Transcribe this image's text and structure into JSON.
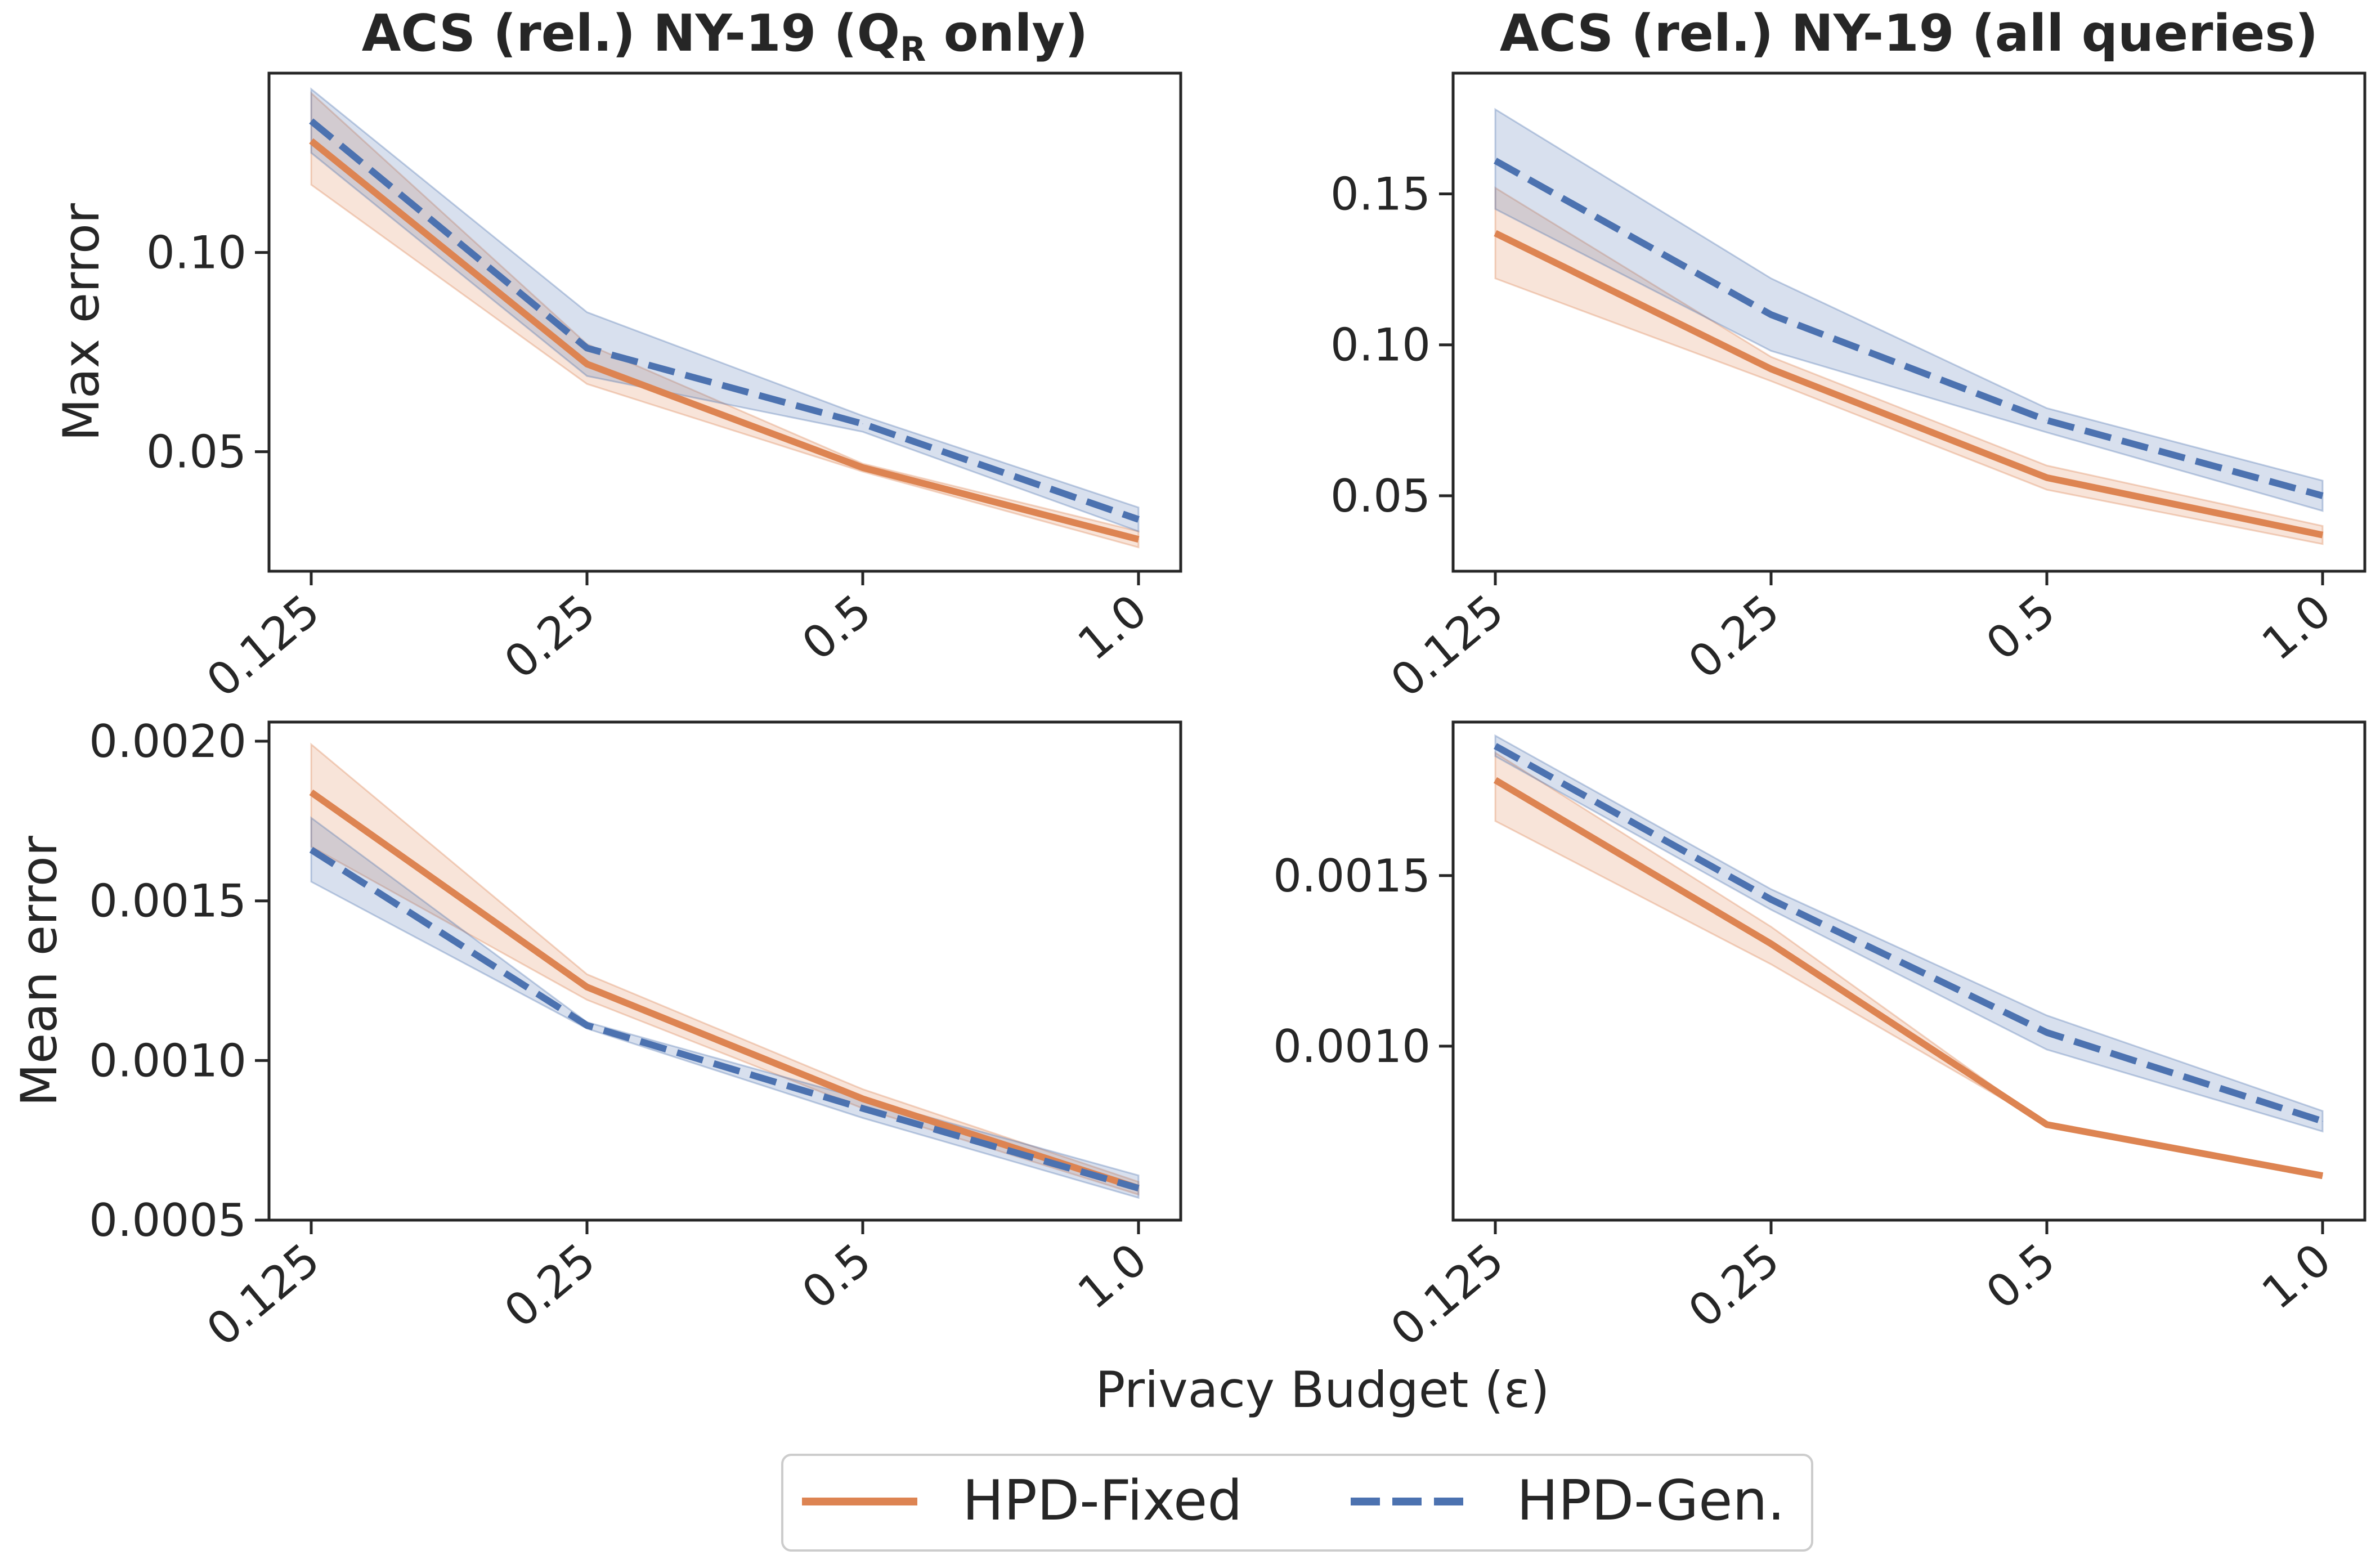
{
  "figure": {
    "xlabel": "Privacy Budget (ε)",
    "legend": {
      "placement": "bottom-center",
      "entries": [
        {
          "label": "HPD-Fixed",
          "color": "#dd8452",
          "style": "solid"
        },
        {
          "label": "HPD-Gen.",
          "color": "#4c72b0",
          "style": "dashed"
        }
      ]
    }
  },
  "chart_data": [
    {
      "type": "line",
      "title": "ACS (rel.) NY-19 (Q",
      "title_sub": "R",
      "title_end": " only)",
      "xlabel": "",
      "ylabel": "Max error",
      "categories": [
        "0.125",
        "0.25",
        "0.5",
        "1.0"
      ],
      "ylim": [
        0.02,
        0.145
      ],
      "yticks": [
        0.05,
        0.1
      ],
      "ytick_labels": [
        "0.05",
        "0.10"
      ],
      "grid": false,
      "series": [
        {
          "name": "HPD-Fixed",
          "color": "#dd8452",
          "dash": "solid",
          "values": [
            0.128,
            0.072,
            0.046,
            0.028
          ],
          "lower": [
            0.117,
            0.067,
            0.045,
            0.026
          ],
          "upper": [
            0.14,
            0.077,
            0.047,
            0.03
          ]
        },
        {
          "name": "HPD-Gen.",
          "color": "#4c72b0",
          "dash": "dashed",
          "values": [
            0.133,
            0.076,
            0.057,
            0.033
          ],
          "lower": [
            0.125,
            0.069,
            0.055,
            0.03
          ],
          "upper": [
            0.141,
            0.085,
            0.059,
            0.036
          ]
        }
      ]
    },
    {
      "type": "line",
      "title": "ACS (rel.) NY-19 (all queries)",
      "title_sub": "",
      "title_end": "",
      "xlabel": "",
      "ylabel": "",
      "categories": [
        "0.125",
        "0.25",
        "0.5",
        "1.0"
      ],
      "ylim": [
        0.025,
        0.19
      ],
      "yticks": [
        0.05,
        0.1,
        0.15
      ],
      "ytick_labels": [
        "0.05",
        "0.10",
        "0.15"
      ],
      "grid": false,
      "series": [
        {
          "name": "HPD-Fixed",
          "color": "#dd8452",
          "dash": "solid",
          "values": [
            0.137,
            0.092,
            0.056,
            0.037
          ],
          "lower": [
            0.122,
            0.088,
            0.052,
            0.034
          ],
          "upper": [
            0.152,
            0.096,
            0.06,
            0.04
          ]
        },
        {
          "name": "HPD-Gen.",
          "color": "#4c72b0",
          "dash": "dashed",
          "values": [
            0.161,
            0.11,
            0.075,
            0.05
          ],
          "lower": [
            0.145,
            0.098,
            0.071,
            0.045
          ],
          "upper": [
            0.178,
            0.122,
            0.079,
            0.055
          ]
        }
      ]
    },
    {
      "type": "line",
      "title": "",
      "title_sub": "",
      "title_end": "",
      "xlabel": "",
      "ylabel": "Mean error",
      "categories": [
        "0.125",
        "0.25",
        "0.5",
        "1.0"
      ],
      "ylim": [
        0.0005,
        0.00206
      ],
      "yticks": [
        0.0005,
        0.001,
        0.0015,
        0.002
      ],
      "ytick_labels": [
        "0.0005",
        "0.0010",
        "0.0015",
        "0.0020"
      ],
      "grid": false,
      "series": [
        {
          "name": "HPD-Fixed",
          "color": "#dd8452",
          "dash": "solid",
          "values": [
            0.00184,
            0.00123,
            0.00088,
            0.0006
          ],
          "lower": [
            0.00167,
            0.00119,
            0.00085,
            0.00058
          ],
          "upper": [
            0.00199,
            0.00127,
            0.00091,
            0.00062
          ]
        },
        {
          "name": "HPD-Gen.",
          "color": "#4c72b0",
          "dash": "dashed",
          "values": [
            0.00166,
            0.00111,
            0.00085,
            0.0006
          ],
          "lower": [
            0.00156,
            0.0011,
            0.00082,
            0.00057
          ],
          "upper": [
            0.00176,
            0.00112,
            0.00088,
            0.00064
          ]
        }
      ]
    },
    {
      "type": "line",
      "title": "",
      "title_sub": "",
      "title_end": "",
      "xlabel": "",
      "ylabel": "",
      "categories": [
        "0.125",
        "0.25",
        "0.5",
        "1.0"
      ],
      "ylim": [
        0.00049,
        0.00195
      ],
      "yticks": [
        0.001,
        0.0015
      ],
      "ytick_labels": [
        "0.0010",
        "0.0015"
      ],
      "grid": false,
      "series": [
        {
          "name": "HPD-Fixed",
          "color": "#dd8452",
          "dash": "solid",
          "values": [
            0.00178,
            0.0013,
            0.00077,
            0.00062
          ],
          "lower": [
            0.00166,
            0.00124,
            0.00077,
            0.00062
          ],
          "upper": [
            0.00186,
            0.00135,
            0.00077,
            0.00062
          ]
        },
        {
          "name": "HPD-Gen.",
          "color": "#4c72b0",
          "dash": "dashed",
          "values": [
            0.00188,
            0.00143,
            0.00104,
            0.00078
          ],
          "lower": [
            0.00185,
            0.0014,
            0.00099,
            0.00075
          ],
          "upper": [
            0.00191,
            0.00146,
            0.00109,
            0.00081
          ]
        }
      ]
    }
  ]
}
